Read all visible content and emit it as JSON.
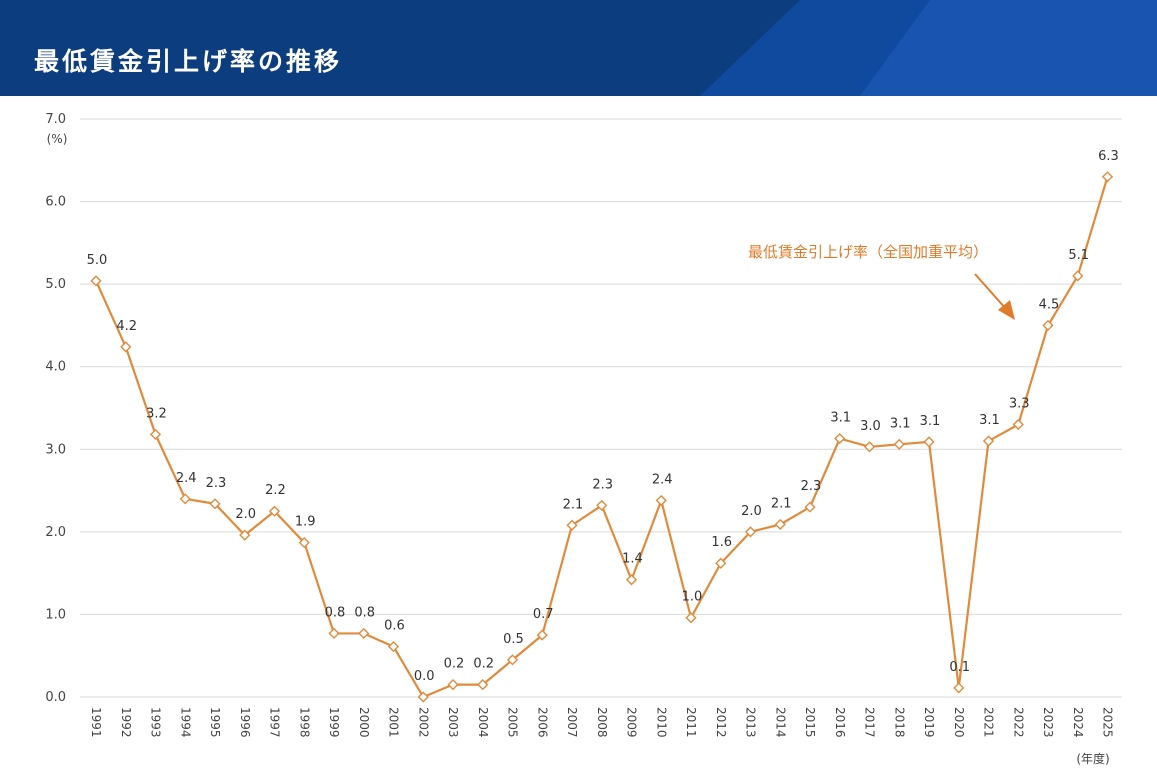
{
  "header": {
    "title": "最低賃金引上げ率の推移"
  },
  "colors": {
    "header_bg": "#0b3d7f",
    "header_accent": "#1656b8",
    "line": "#e08a3c",
    "annotation": "#e07b2a",
    "grid": "#d9d9d9"
  },
  "chart_data": {
    "type": "line",
    "title": "",
    "xlabel": "(年度)",
    "ylabel": "(%)",
    "ylim": [
      0,
      7
    ],
    "yticks": [
      "0.0",
      "1.0",
      "2.0",
      "3.0",
      "4.0",
      "5.0",
      "6.0",
      "7.0"
    ],
    "grid": true,
    "x": [
      "1991",
      "1992",
      "1993",
      "1994",
      "1995",
      "1996",
      "1997",
      "1998",
      "1999",
      "2000",
      "2001",
      "2002",
      "2003",
      "2004",
      "2005",
      "2006",
      "2007",
      "2008",
      "2009",
      "2010",
      "2011",
      "2012",
      "2013",
      "2014",
      "2015",
      "2016",
      "2017",
      "2018",
      "2019",
      "2020",
      "2021",
      "2022",
      "2023",
      "2024",
      "2025"
    ],
    "series": [
      {
        "name": "最低賃金引上げ率（全国加重平均）",
        "values": [
          5.04,
          4.24,
          3.18,
          2.4,
          2.34,
          1.96,
          2.25,
          1.87,
          0.77,
          0.77,
          0.61,
          0.0,
          0.15,
          0.15,
          0.45,
          0.75,
          2.08,
          2.32,
          1.42,
          2.38,
          0.96,
          1.62,
          2.0,
          2.09,
          2.3,
          3.13,
          3.03,
          3.06,
          3.09,
          0.11,
          3.1,
          3.3,
          4.5,
          5.1,
          6.3
        ],
        "labels": [
          "5.0",
          "4.2",
          "3.2",
          "2.4",
          "2.3",
          "2.0",
          "2.2",
          "1.9",
          "0.8",
          "0.8",
          "0.6",
          "0.0",
          "0.2",
          "0.2",
          "0.5",
          "0.7",
          "2.1",
          "2.3",
          "1.4",
          "2.4",
          "1.0",
          "1.6",
          "2.0",
          "2.1",
          "2.3",
          "3.1",
          "3.0",
          "3.1",
          "3.1",
          "0.1",
          "3.1",
          "3.3",
          "4.5",
          "5.1",
          "6.3"
        ]
      }
    ],
    "annotation": "最低賃金引上げ率（全国加重平均）"
  }
}
